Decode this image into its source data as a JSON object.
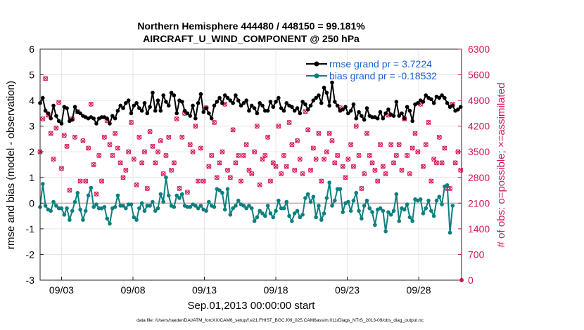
{
  "chart_data": {
    "type": "line",
    "title": [
      "Northern Hemisphere 444480 / 448150 = 99.181%",
      "AIRCRAFT_U_WIND_COMPONENT @ 250 hPa"
    ],
    "xlabel": "Sep.01,2013 00:00:00 start",
    "ylabel_left": "rmse and bias (model - observation)",
    "ylabel_right": "# of obs: o=possible; ×=assimilated",
    "xticks": [
      "09/03",
      "09/08",
      "09/13",
      "09/18",
      "09/23",
      "09/28"
    ],
    "xtick_days": [
      3,
      8,
      13,
      18,
      23,
      28
    ],
    "xlim": [
      1.5,
      31.0
    ],
    "ylim_left": [
      -3,
      6
    ],
    "yticks_left": [
      "-3",
      "-2",
      "-1",
      "0",
      "1",
      "2",
      "3",
      "4",
      "5",
      "6"
    ],
    "ylim_right": [
      0,
      6300
    ],
    "yticks_right": [
      "0",
      "700",
      "1400",
      "2100",
      "2800",
      "3500",
      "4200",
      "4900",
      "5600",
      "6300"
    ],
    "legend": [
      "rmse grand pr = 3.7224",
      "bias grand pr = -0.18532"
    ],
    "legend_position": "top-right",
    "footer": "data file: /Users/raeder/DAI/ATM_forcXX/CAM6_setup/f.e21.FHIST_BGC.f09_025.CAM6assim.011/Diags_NTrS_2013-09/obs_diag_output.nc",
    "colors": {
      "rmse": "#000000",
      "bias": "#0e7f7f",
      "obs": "#d6145a",
      "zero": "#c8a8a8"
    },
    "series": [
      {
        "name": "rmse grand pr = 3.7224",
        "values": [
          3.9,
          4.1,
          3.6,
          3.5,
          3.3,
          3.8,
          3.4,
          3.2,
          3.1,
          3.75,
          3.7,
          3.2,
          3.25,
          3.75,
          3.55,
          3.5,
          3.4,
          3.35,
          3.3,
          3.35,
          3.3,
          3.1,
          3.3,
          3.35,
          3.35,
          3.3,
          3.1,
          3.4,
          3.3,
          3.6,
          3.8,
          3.7,
          3.9,
          4.0,
          3.5,
          3.8,
          3.9,
          3.7,
          3.6,
          3.9,
          3.5,
          3.75,
          4.3,
          3.6,
          4.0,
          3.6,
          4.2,
          3.95,
          3.8,
          4.3,
          4.2,
          3.5,
          4.0,
          3.95,
          3.6,
          3.5,
          3.4,
          3.8,
          3.3,
          3.9,
          4.25,
          3.55,
          3.7,
          3.5,
          3.3,
          3.8,
          3.95,
          4.1,
          3.9,
          4.2,
          4.1,
          4.0,
          3.9,
          4.2,
          4.0,
          3.8,
          3.9,
          4.0,
          3.6,
          3.8,
          3.7,
          3.5,
          3.9,
          3.8,
          3.6,
          3.6,
          3.95,
          3.75,
          3.95,
          4.1,
          3.7,
          3.6,
          3.9,
          3.8,
          3.75,
          3.6,
          3.7,
          3.5,
          3.95,
          3.85,
          3.65,
          3.8,
          4.0,
          4.1,
          4.2,
          3.9,
          4.5,
          4.3,
          3.8,
          4.7,
          3.95,
          3.8,
          3.6,
          3.65,
          3.75,
          3.5,
          3.6,
          3.85,
          3.3,
          3.55,
          3.4,
          3.25,
          3.7,
          3.4,
          3.35,
          3.35,
          3.3,
          3.55,
          3.3,
          3.5,
          3.65,
          3.45,
          3.4,
          3.95,
          3.4,
          3.5,
          3.3,
          3.75,
          3.6,
          3.2,
          3.85,
          3.9,
          4.0,
          3.95,
          4.2,
          4.1,
          4.05,
          3.9,
          4.15,
          4.1,
          4.2,
          4.1,
          3.9,
          3.75,
          3.8,
          3.6,
          3.65,
          3.75
        ]
      },
      {
        "name": "bias grand pr = -0.18532",
        "values": [
          -0.15,
          0.75,
          -0.1,
          -0.25,
          -0.3,
          0.05,
          -0.1,
          -0.2,
          -0.2,
          -0.45,
          -0.2,
          -0.65,
          -0.3,
          0.05,
          0.4,
          -0.25,
          -0.65,
          -0.3,
          0.3,
          0.6,
          -0.15,
          -0.05,
          -0.2,
          -0.2,
          -0.15,
          -0.6,
          -0.8,
          -0.2,
          -0.15,
          0.3,
          -0.1,
          -0.1,
          -0.2,
          -0.05,
          -0.05,
          -0.55,
          -0.65,
          -0.2,
          0.0,
          -0.3,
          -0.1,
          -0.1,
          0.05,
          -0.3,
          -0.2,
          0.35,
          0.05,
          1.0,
          0.3,
          -0.1,
          -0.15,
          0.3,
          0.2,
          0.35,
          -0.1,
          -0.15,
          -0.15,
          -0.05,
          -0.1,
          -0.2,
          -0.1,
          -0.25,
          -0.3,
          0.05,
          -0.1,
          -0.15,
          0.55,
          0.5,
          0.4,
          -0.25,
          0.55,
          -0.45,
          -0.2,
          -0.1,
          0.1,
          -0.05,
          -0.1,
          -0.2,
          -0.1,
          -0.2,
          -0.7,
          -0.55,
          -0.3,
          -0.4,
          -0.5,
          -0.1,
          -0.4,
          -0.55,
          -0.3,
          0.1,
          -0.2,
          -0.2,
          0.05,
          -0.5,
          -0.7,
          -0.4,
          -0.3,
          -0.55,
          -0.45,
          0.2,
          0.35,
          0.05,
          0.25,
          -0.55,
          -0.1,
          -0.65,
          -0.4,
          0.2,
          0.8,
          -0.1,
          0.1,
          0.55,
          0.55,
          -0.35,
          0.0,
          0.05,
          -0.3,
          0.1,
          0.4,
          -0.3,
          -0.6,
          -0.1,
          0.1,
          -0.2,
          -0.35,
          -0.85,
          -0.25,
          -0.2,
          -0.3,
          -1.1,
          -0.35,
          -0.45,
          -0.3,
          0.35,
          -0.7,
          -0.2,
          -0.25,
          -0.05,
          -0.55,
          -0.7,
          0.15,
          0.1,
          0.15,
          -0.4,
          -0.2,
          0.1,
          -0.3,
          -0.5,
          0.1,
          0.25,
          -0.05,
          0.65,
          0.7,
          -1.15,
          -0.1
        ]
      }
    ],
    "obs_counts": [
      3500,
      4400,
      5500,
      4500,
      4000,
      3300,
      4150,
      4850,
      3050,
      3950,
      3650,
      2450,
      4400,
      3900,
      4600,
      2700,
      3800,
      2700,
      3600,
      4800,
      3150,
      2350,
      3400,
      2700,
      3900,
      4350,
      3700,
      3400,
      4000,
      3600,
      3200,
      2800,
      3000,
      3500,
      4300,
      3300,
      2600,
      3900,
      3200,
      3500,
      2500,
      4050,
      3650,
      3200,
      3500,
      3800,
      2900,
      3400,
      3900,
      3000,
      3200,
      4400,
      2500,
      3900,
      4550,
      2400,
      3700,
      3500,
      4200,
      2700,
      3600,
      2700,
      4700,
      3100,
      3400,
      4300,
      2800,
      3200,
      3500,
      4800,
      3000,
      2800,
      4100,
      3200,
      3400,
      2700,
      3400,
      3700,
      3000,
      2900,
      3500,
      4200,
      2600,
      3300,
      3400,
      3900,
      2700,
      3200,
      3100,
      4200,
      2900,
      3400,
      3100,
      4300,
      3700,
      3000,
      3800,
      3300,
      2900,
      4600,
      4100,
      3000,
      3600,
      3300,
      4000,
      2700,
      3300,
      3500,
      4000,
      3800,
      3200,
      3400,
      4700,
      3100,
      2800,
      3300,
      3700,
      3100,
      4200,
      3400,
      2500,
      2900,
      4000,
      3400,
      3200,
      3000,
      2700,
      3700,
      3100,
      2900,
      4500,
      3700,
      3200,
      3400,
      3700,
      3000,
      4400,
      3400,
      2900,
      3600,
      4000,
      3500,
      4800,
      3100,
      3700,
      4300,
      2700,
      3300,
      3200,
      3900,
      3200,
      3600,
      2500,
      2500,
      4800,
      3200,
      3500,
      3000
    ]
  }
}
